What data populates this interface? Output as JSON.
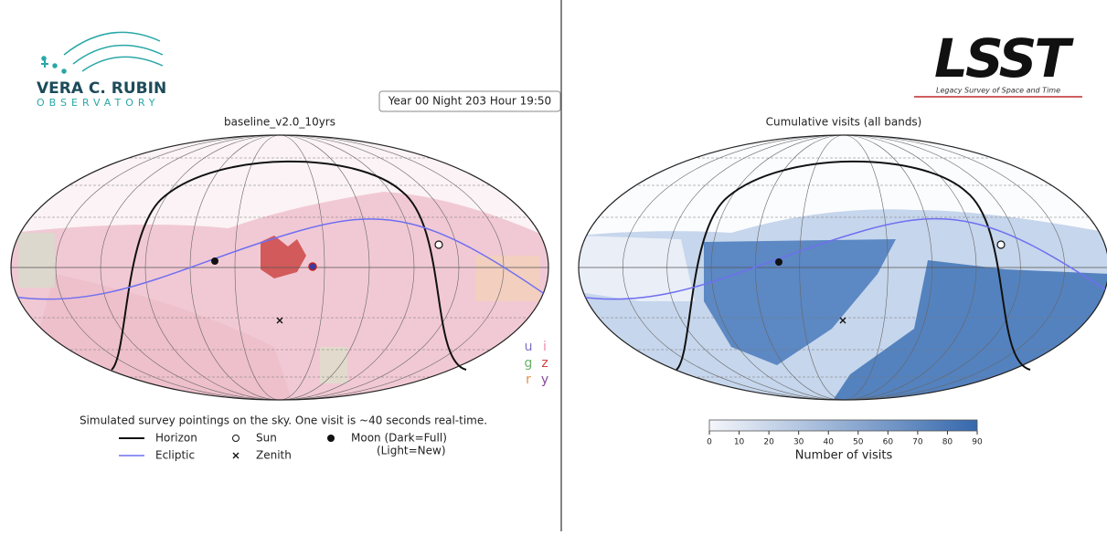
{
  "logos": {
    "rubin": {
      "line1": "VERA C. RUBIN",
      "line2": "OBSERVATORY"
    },
    "lsst": {
      "name": "LSST",
      "tagline": "Legacy Survey of Space and Time"
    }
  },
  "left": {
    "timestamp": "Year 00 Night 203 Hour 19:50",
    "title": "baseline_v2.0_10yrs",
    "caption": "Simulated survey pointings on the sky. One visit is ~40 seconds real-time.",
    "legend": {
      "horizon": "Horizon",
      "ecliptic": "Ecliptic",
      "sun": "Sun",
      "zenith": "Zenith",
      "moon_line1": "Moon (Dark=Full)",
      "moon_line2": "(Light=New)"
    },
    "filters": [
      {
        "name": "u",
        "color": "#7b6fc4"
      },
      {
        "name": "g",
        "color": "#6ab06a"
      },
      {
        "name": "r",
        "color": "#e0904a"
      },
      {
        "name": "i",
        "color": "#f08ab0"
      },
      {
        "name": "z",
        "color": "#d04040"
      },
      {
        "name": "y",
        "color": "#8a4a9a"
      }
    ]
  },
  "right": {
    "title": "Cumulative visits (all bands)",
    "colorbar": {
      "label": "Number of visits",
      "lim": [
        0,
        90
      ],
      "ticks": [
        0,
        10,
        20,
        30,
        40,
        50,
        60,
        70,
        80,
        90
      ],
      "color_low": "#f4f6fb",
      "color_high": "#3568ad"
    }
  }
}
